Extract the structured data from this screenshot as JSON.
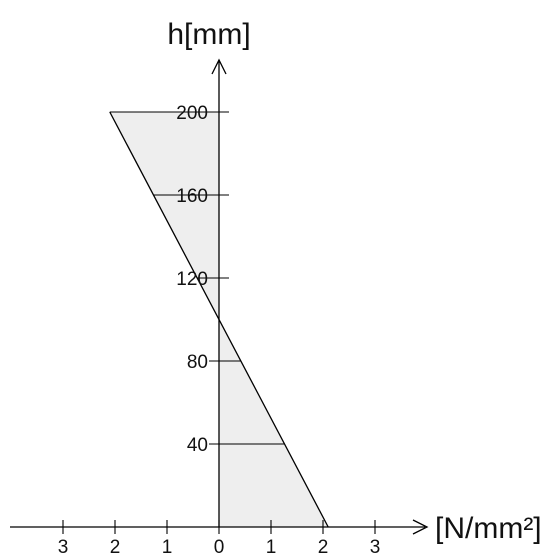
{
  "y_axis": {
    "title": "h[mm]",
    "tick_labels": [
      "40",
      "80",
      "120",
      "160",
      "200"
    ]
  },
  "x_axis": {
    "title": "[N/mm²]",
    "tick_labels": [
      "3",
      "2",
      "1",
      "0",
      "1",
      "2",
      "3"
    ]
  },
  "stress_distribution": {
    "top_height_mm": 200,
    "top_stress_Nmm2": -2.1,
    "bottom_height_mm": 0,
    "bottom_stress_Nmm2": 2.1,
    "neutral_axis_mm": 100,
    "marker_heights_mm": [
      40,
      80,
      120,
      160,
      200
    ]
  },
  "colors": {
    "shading": "#eeeeee",
    "line": "#000000"
  }
}
